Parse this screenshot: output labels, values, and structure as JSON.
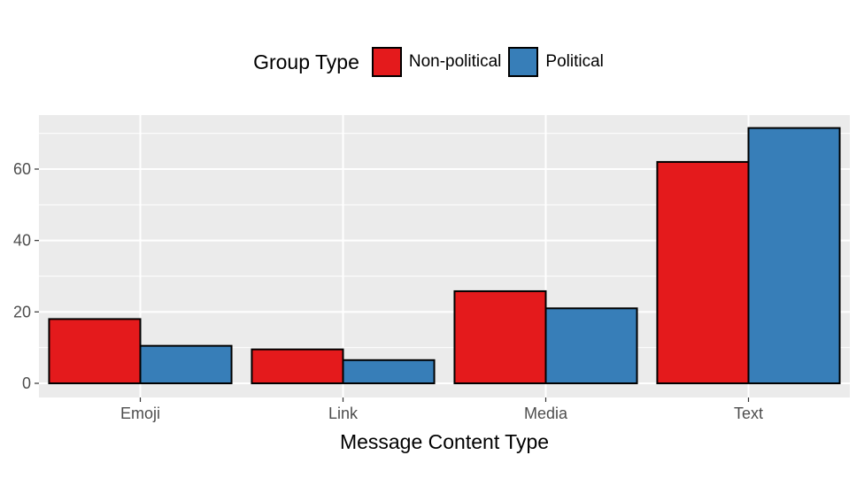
{
  "chart_data": {
    "type": "bar",
    "categories": [
      "Emoji",
      "Link",
      "Media",
      "Text"
    ],
    "series": [
      {
        "name": "Non-political",
        "values": [
          18,
          9.5,
          25.8,
          62
        ],
        "color": "#e41a1c"
      },
      {
        "name": "Political",
        "values": [
          10.5,
          6.5,
          21,
          71.5
        ],
        "color": "#377eb8"
      }
    ],
    "legend_title": "Group Type",
    "legend_position": "top",
    "xlabel": "Message Content Type",
    "ylabel": "",
    "ylim": [
      0,
      75.3
    ],
    "yticks": [
      0,
      20,
      40,
      60
    ],
    "ytick_labels": [
      "0",
      "20",
      "40",
      "60"
    ],
    "grid": true,
    "panel_color": "#ebebeb"
  }
}
